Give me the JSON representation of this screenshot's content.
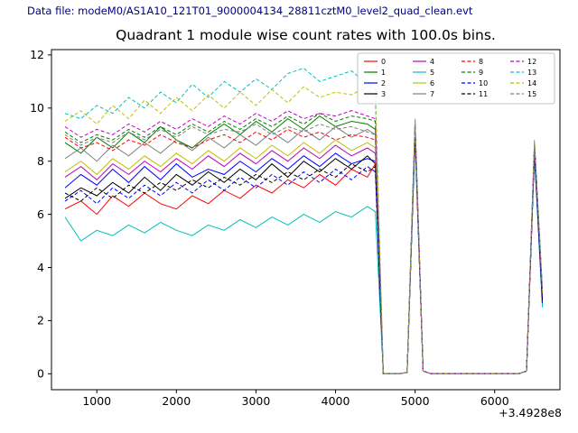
{
  "header": {
    "data_file_label": "Data file: modeM0/AS1A10_121T01_9000004134_28811cztM0_level2_quad_clean.evt"
  },
  "chart_data": {
    "type": "line",
    "title": "Quadrant 1 module wise count rates with 100.0s bins.",
    "xlabel": "",
    "ylabel": "",
    "x_offset_text": "+3.4928e8",
    "xlim": [
      430,
      6820
    ],
    "ylim": [
      -0.6,
      12.2
    ],
    "xticks": [
      1000,
      2000,
      3000,
      4000,
      5000,
      6000
    ],
    "yticks": [
      0,
      2,
      4,
      6,
      8,
      10,
      12
    ],
    "grid": false,
    "legend_position": "upper right",
    "legend_ncol": 4,
    "x": [
      600,
      800,
      1000,
      1200,
      1400,
      1600,
      1800,
      2000,
      2200,
      2400,
      2600,
      2800,
      3000,
      3200,
      3400,
      3600,
      3800,
      4000,
      4200,
      4400,
      4500,
      4600,
      4800,
      4900,
      5000,
      5100,
      5200,
      6300,
      6400,
      6500,
      6600
    ],
    "series": [
      {
        "label": "0",
        "color": "#ff0000",
        "style": "solid",
        "y": [
          6.2,
          6.5,
          6.0,
          6.7,
          6.3,
          6.8,
          6.4,
          6.2,
          6.7,
          6.4,
          6.9,
          6.6,
          7.1,
          6.8,
          7.3,
          7.0,
          7.5,
          7.1,
          7.7,
          7.4,
          7.9,
          0,
          0,
          0.05,
          9.2,
          0.1,
          0,
          0,
          0.1,
          8.5,
          2.9
        ]
      },
      {
        "label": "1",
        "color": "#008000",
        "style": "solid",
        "y": [
          8.7,
          8.3,
          8.9,
          8.5,
          9.1,
          8.7,
          9.3,
          8.8,
          8.5,
          9.0,
          9.4,
          9.0,
          9.5,
          9.1,
          9.6,
          9.2,
          9.7,
          9.3,
          9.5,
          9.4,
          9.2,
          0,
          0,
          0.05,
          9.4,
          0.1,
          0,
          0,
          0.1,
          8.6,
          3.0
        ]
      },
      {
        "label": "2",
        "color": "#0000ff",
        "style": "solid",
        "y": [
          7.0,
          7.5,
          7.1,
          7.7,
          7.2,
          7.8,
          7.3,
          7.9,
          7.4,
          7.7,
          7.5,
          8.0,
          7.6,
          8.1,
          7.7,
          8.2,
          7.8,
          8.3,
          7.9,
          8.1,
          8.0,
          0,
          0,
          0.05,
          9.1,
          0.1,
          0,
          0,
          0.1,
          8.4,
          2.8
        ]
      },
      {
        "label": "3",
        "color": "#000000",
        "style": "solid",
        "y": [
          6.6,
          7.0,
          6.7,
          7.2,
          6.8,
          7.4,
          6.9,
          7.5,
          7.1,
          7.6,
          7.2,
          7.7,
          7.3,
          7.9,
          7.4,
          8.0,
          7.6,
          8.1,
          7.7,
          8.2,
          7.9,
          0,
          0,
          0.05,
          9.0,
          0.1,
          0,
          0,
          0.1,
          8.3,
          2.7
        ]
      },
      {
        "label": "4",
        "color": "#bf00bf",
        "style": "solid",
        "y": [
          7.4,
          7.8,
          7.3,
          7.9,
          7.5,
          8.0,
          7.6,
          8.1,
          7.7,
          8.2,
          7.8,
          8.3,
          7.9,
          8.4,
          8.0,
          8.5,
          8.1,
          8.6,
          8.2,
          8.5,
          8.3,
          0,
          0,
          0.05,
          9.3,
          0.1,
          0,
          0,
          0.1,
          8.5,
          2.9
        ]
      },
      {
        "label": "5",
        "color": "#00bfbf",
        "style": "solid",
        "y": [
          5.9,
          5.0,
          5.4,
          5.2,
          5.6,
          5.3,
          5.7,
          5.4,
          5.2,
          5.6,
          5.4,
          5.8,
          5.5,
          5.9,
          5.6,
          6.0,
          5.7,
          6.1,
          5.9,
          6.3,
          6.1,
          0,
          0,
          0.05,
          8.9,
          0.1,
          0,
          0,
          0.1,
          8.2,
          2.5
        ]
      },
      {
        "label": "6",
        "color": "#bfbf00",
        "style": "solid",
        "y": [
          7.6,
          8.0,
          7.5,
          8.1,
          7.7,
          8.2,
          7.8,
          8.3,
          7.9,
          8.4,
          8.0,
          8.5,
          8.1,
          8.6,
          8.2,
          8.7,
          8.3,
          8.8,
          8.4,
          8.7,
          8.5,
          0,
          0,
          0.05,
          9.2,
          0.1,
          0,
          0,
          0.1,
          8.6,
          3.0
        ]
      },
      {
        "label": "7",
        "color": "#7f7f7f",
        "style": "solid",
        "y": [
          8.1,
          8.5,
          8.0,
          8.6,
          8.2,
          8.7,
          8.3,
          8.8,
          8.4,
          8.9,
          8.5,
          9.0,
          8.6,
          9.1,
          8.7,
          9.2,
          8.8,
          9.3,
          8.9,
          9.2,
          9.0,
          0,
          0,
          0.05,
          9.3,
          0.1,
          0,
          0,
          0.1,
          8.6,
          3.1
        ]
      },
      {
        "label": "8",
        "color": "#ff0000",
        "style": "dashed",
        "y": [
          8.9,
          8.5,
          8.7,
          8.4,
          8.8,
          8.6,
          9.0,
          8.7,
          8.5,
          8.8,
          9.0,
          8.7,
          9.1,
          8.8,
          9.2,
          8.9,
          9.1,
          8.8,
          9.0,
          8.9,
          8.8,
          0,
          0,
          0.05,
          9.4,
          0.1,
          0,
          0,
          0.1,
          8.7,
          3.0
        ]
      },
      {
        "label": "9",
        "color": "#008000",
        "style": "dashed",
        "y": [
          9.1,
          8.7,
          9.0,
          8.8,
          9.2,
          8.9,
          9.3,
          9.0,
          9.4,
          9.1,
          9.5,
          9.2,
          9.6,
          9.3,
          9.7,
          9.4,
          9.8,
          9.5,
          9.7,
          9.6,
          9.5,
          0,
          0,
          0.05,
          9.5,
          0.1,
          0,
          0,
          0.1,
          8.7,
          3.1
        ]
      },
      {
        "label": "10",
        "color": "#0000ff",
        "style": "dashed",
        "y": [
          6.5,
          6.9,
          6.4,
          7.0,
          6.6,
          7.1,
          6.7,
          7.2,
          6.8,
          7.3,
          6.9,
          7.4,
          7.0,
          7.5,
          7.1,
          7.6,
          7.2,
          7.7,
          7.3,
          7.8,
          7.6,
          0,
          0,
          0.05,
          9.0,
          0.1,
          0,
          0,
          0.1,
          8.3,
          2.6
        ]
      },
      {
        "label": "11",
        "color": "#000000",
        "style": "dashed",
        "y": [
          6.8,
          6.5,
          7.0,
          6.6,
          7.1,
          6.8,
          7.2,
          6.9,
          7.3,
          7.0,
          7.4,
          7.1,
          7.5,
          7.2,
          7.6,
          7.3,
          7.7,
          7.4,
          7.9,
          7.6,
          7.8,
          0,
          0,
          0.05,
          9.1,
          0.1,
          0,
          0,
          0.1,
          8.4,
          2.7
        ]
      },
      {
        "label": "12",
        "color": "#bf00bf",
        "style": "dashed",
        "y": [
          9.3,
          8.9,
          9.2,
          9.0,
          9.4,
          9.1,
          9.5,
          9.2,
          9.6,
          9.3,
          9.7,
          9.4,
          9.8,
          9.5,
          9.9,
          9.6,
          9.8,
          9.7,
          9.9,
          9.7,
          9.6,
          0,
          0,
          0.05,
          9.5,
          0.1,
          0,
          0,
          0.1,
          8.7,
          3.1
        ]
      },
      {
        "label": "13",
        "color": "#00bfbf",
        "style": "dashed",
        "y": [
          9.8,
          9.6,
          10.1,
          9.8,
          10.4,
          10.0,
          10.6,
          10.2,
          10.9,
          10.4,
          11.0,
          10.6,
          11.1,
          10.7,
          11.3,
          11.5,
          11.0,
          11.2,
          11.4,
          10.9,
          10.7,
          0,
          0,
          0.05,
          9.6,
          0.1,
          0,
          0,
          0.1,
          8.8,
          3.2
        ]
      },
      {
        "label": "14",
        "color": "#bfbf00",
        "style": "dashed",
        "y": [
          9.5,
          9.9,
          9.4,
          10.1,
          9.6,
          10.3,
          9.8,
          10.4,
          9.9,
          10.5,
          10.0,
          10.6,
          10.1,
          10.7,
          10.2,
          10.8,
          10.4,
          10.6,
          10.5,
          10.8,
          10.3,
          0,
          0,
          0.05,
          9.5,
          0.1,
          0,
          0,
          0.1,
          8.7,
          3.1
        ]
      },
      {
        "label": "15",
        "color": "#7f7f7f",
        "style": "dashed",
        "y": [
          9.0,
          8.6,
          8.9,
          8.7,
          9.1,
          8.8,
          9.2,
          8.9,
          9.3,
          9.0,
          9.2,
          9.1,
          9.4,
          9.0,
          9.3,
          9.1,
          9.4,
          9.2,
          9.3,
          9.1,
          9.0,
          0,
          0,
          0.05,
          9.4,
          0.1,
          0,
          0,
          0.1,
          8.6,
          3.0
        ]
      }
    ]
  }
}
